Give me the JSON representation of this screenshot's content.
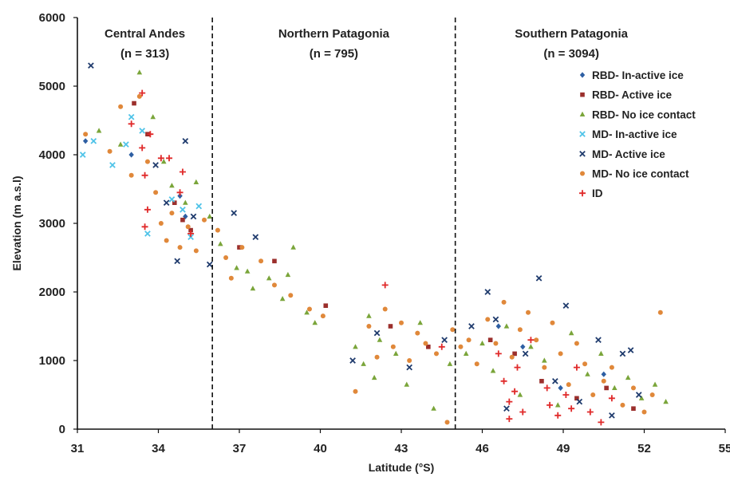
{
  "chart_data": {
    "type": "scatter",
    "xlabel": "Latitude (°S)",
    "ylabel": "Elevation (m a.s.l)",
    "xlim": [
      31,
      55
    ],
    "ylim": [
      0,
      6000
    ],
    "x_ticks": [
      "31",
      "34",
      "37",
      "40",
      "43",
      "46",
      "49",
      "52",
      "55"
    ],
    "y_ticks": [
      "0",
      "1000",
      "2000",
      "3000",
      "4000",
      "5000",
      "6000"
    ],
    "grid": false,
    "legend_position": "top-right",
    "dividers_x": [
      36,
      45
    ],
    "regions": [
      {
        "name": "Central Andes",
        "count": "(n = 313)",
        "x_center": 33.5
      },
      {
        "name": "Northern Patagonia",
        "count": "(n = 795)",
        "x_center": 40.5
      },
      {
        "name": "Southern Patagonia",
        "count": "(n = 3094)",
        "x_center": 49.3
      }
    ],
    "series": [
      {
        "name": "RBD- In-active ice",
        "color": "#2e5fa3",
        "marker": "diamond",
        "points": [
          [
            31.3,
            4200
          ],
          [
            33.0,
            4000
          ],
          [
            34.8,
            3400
          ],
          [
            35.0,
            3100
          ],
          [
            46.6,
            1500
          ],
          [
            47.5,
            1200
          ],
          [
            48.9,
            600
          ],
          [
            50.5,
            800
          ]
        ]
      },
      {
        "name": "RBD- Active ice",
        "color": "#9b2f2c",
        "marker": "square",
        "points": [
          [
            33.1,
            4750
          ],
          [
            33.6,
            4300
          ],
          [
            34.6,
            3300
          ],
          [
            34.9,
            3050
          ],
          [
            35.2,
            2900
          ],
          [
            37.0,
            2650
          ],
          [
            38.3,
            2450
          ],
          [
            40.2,
            1800
          ],
          [
            42.6,
            1500
          ],
          [
            44.0,
            1200
          ],
          [
            46.3,
            1300
          ],
          [
            47.2,
            1100
          ],
          [
            48.2,
            700
          ],
          [
            49.5,
            450
          ],
          [
            50.6,
            600
          ],
          [
            51.6,
            300
          ]
        ]
      },
      {
        "name": "RBD- No ice contact",
        "color": "#7aa53a",
        "marker": "triangle",
        "points": [
          [
            31.8,
            4350
          ],
          [
            32.6,
            4150
          ],
          [
            33.3,
            5200
          ],
          [
            33.8,
            4550
          ],
          [
            34.2,
            3900
          ],
          [
            34.5,
            3550
          ],
          [
            35.0,
            3300
          ],
          [
            35.4,
            3600
          ],
          [
            35.9,
            3100
          ],
          [
            36.3,
            2700
          ],
          [
            36.9,
            2350
          ],
          [
            37.3,
            2300
          ],
          [
            37.5,
            2050
          ],
          [
            38.1,
            2200
          ],
          [
            38.6,
            1900
          ],
          [
            38.8,
            2250
          ],
          [
            39.0,
            2650
          ],
          [
            39.5,
            1700
          ],
          [
            39.8,
            1550
          ],
          [
            41.3,
            1200
          ],
          [
            41.6,
            950
          ],
          [
            41.8,
            1650
          ],
          [
            42.0,
            750
          ],
          [
            42.2,
            1300
          ],
          [
            42.8,
            1100
          ],
          [
            43.2,
            650
          ],
          [
            43.7,
            1550
          ],
          [
            44.2,
            300
          ],
          [
            44.8,
            950
          ],
          [
            45.4,
            1100
          ],
          [
            46.0,
            1250
          ],
          [
            46.4,
            850
          ],
          [
            46.9,
            1500
          ],
          [
            47.4,
            500
          ],
          [
            47.8,
            1200
          ],
          [
            48.3,
            1000
          ],
          [
            48.8,
            350
          ],
          [
            49.3,
            1400
          ],
          [
            49.9,
            800
          ],
          [
            50.4,
            1100
          ],
          [
            50.9,
            600
          ],
          [
            51.4,
            750
          ],
          [
            51.9,
            450
          ],
          [
            52.4,
            650
          ],
          [
            52.8,
            400
          ]
        ]
      },
      {
        "name": "MD- In-active ice",
        "color": "#4fc3e8",
        "marker": "x",
        "points": [
          [
            31.2,
            4000
          ],
          [
            31.6,
            4200
          ],
          [
            32.3,
            3850
          ],
          [
            32.8,
            4150
          ],
          [
            33.0,
            4550
          ],
          [
            33.4,
            4350
          ],
          [
            33.6,
            2850
          ],
          [
            34.5,
            3350
          ],
          [
            34.9,
            3200
          ],
          [
            35.2,
            2800
          ],
          [
            35.5,
            3250
          ]
        ]
      },
      {
        "name": "MD- Active ice",
        "color": "#1f3b6d",
        "marker": "x",
        "points": [
          [
            31.5,
            5300
          ],
          [
            33.9,
            3850
          ],
          [
            34.3,
            3300
          ],
          [
            34.7,
            2450
          ],
          [
            35.0,
            4200
          ],
          [
            35.3,
            3100
          ],
          [
            35.9,
            2400
          ],
          [
            36.8,
            3150
          ],
          [
            37.6,
            2800
          ],
          [
            41.2,
            1000
          ],
          [
            42.1,
            1400
          ],
          [
            43.3,
            900
          ],
          [
            44.6,
            1300
          ],
          [
            45.6,
            1500
          ],
          [
            46.2,
            2000
          ],
          [
            46.5,
            1600
          ],
          [
            46.9,
            300
          ],
          [
            47.6,
            1100
          ],
          [
            48.1,
            2200
          ],
          [
            48.7,
            700
          ],
          [
            49.1,
            1800
          ],
          [
            49.6,
            400
          ],
          [
            50.3,
            1300
          ],
          [
            50.8,
            200
          ],
          [
            51.2,
            1100
          ],
          [
            51.5,
            1150
          ],
          [
            51.8,
            500
          ]
        ]
      },
      {
        "name": "MD- No ice contact",
        "color": "#e0883a",
        "marker": "circle",
        "points": [
          [
            31.3,
            4300
          ],
          [
            32.2,
            4050
          ],
          [
            32.6,
            4700
          ],
          [
            33.0,
            3700
          ],
          [
            33.3,
            4850
          ],
          [
            33.6,
            3900
          ],
          [
            33.9,
            3450
          ],
          [
            34.1,
            3000
          ],
          [
            34.3,
            2750
          ],
          [
            34.5,
            3150
          ],
          [
            34.8,
            2650
          ],
          [
            35.1,
            2950
          ],
          [
            35.4,
            2600
          ],
          [
            35.7,
            3050
          ],
          [
            36.2,
            2900
          ],
          [
            36.5,
            2500
          ],
          [
            36.7,
            2200
          ],
          [
            37.1,
            2650
          ],
          [
            37.8,
            2450
          ],
          [
            38.3,
            2100
          ],
          [
            38.9,
            1950
          ],
          [
            39.6,
            1750
          ],
          [
            40.1,
            1650
          ],
          [
            41.3,
            550
          ],
          [
            41.8,
            1500
          ],
          [
            42.1,
            1050
          ],
          [
            42.4,
            1750
          ],
          [
            42.7,
            1200
          ],
          [
            43.0,
            1550
          ],
          [
            43.3,
            1000
          ],
          [
            43.6,
            1400
          ],
          [
            43.9,
            1250
          ],
          [
            44.3,
            1100
          ],
          [
            44.7,
            100
          ],
          [
            44.9,
            1450
          ],
          [
            45.2,
            1200
          ],
          [
            45.5,
            1300
          ],
          [
            45.8,
            950
          ],
          [
            46.2,
            1600
          ],
          [
            46.5,
            1250
          ],
          [
            46.8,
            1850
          ],
          [
            47.1,
            1050
          ],
          [
            47.4,
            1450
          ],
          [
            47.7,
            1700
          ],
          [
            48.0,
            1300
          ],
          [
            48.3,
            900
          ],
          [
            48.6,
            1550
          ],
          [
            48.9,
            1100
          ],
          [
            49.2,
            650
          ],
          [
            49.5,
            1250
          ],
          [
            49.8,
            950
          ],
          [
            50.1,
            500
          ],
          [
            50.5,
            700
          ],
          [
            50.8,
            900
          ],
          [
            51.2,
            350
          ],
          [
            51.6,
            600
          ],
          [
            52.0,
            250
          ],
          [
            52.3,
            500
          ],
          [
            52.6,
            1700
          ]
        ]
      },
      {
        "name": "ID",
        "color": "#e02a2a",
        "marker": "plus",
        "points": [
          [
            33.4,
            4900
          ],
          [
            33.0,
            4450
          ],
          [
            33.7,
            4300
          ],
          [
            33.4,
            4100
          ],
          [
            34.1,
            3950
          ],
          [
            34.4,
            3950
          ],
          [
            34.9,
            3750
          ],
          [
            33.5,
            3700
          ],
          [
            33.6,
            3200
          ],
          [
            33.5,
            2950
          ],
          [
            34.8,
            3450
          ],
          [
            35.2,
            2850
          ],
          [
            42.4,
            2100
          ],
          [
            44.5,
            1200
          ],
          [
            46.6,
            1100
          ],
          [
            46.8,
            700
          ],
          [
            47.0,
            400
          ],
          [
            47.0,
            150
          ],
          [
            47.2,
            550
          ],
          [
            47.3,
            900
          ],
          [
            47.5,
            250
          ],
          [
            47.8,
            1300
          ],
          [
            48.4,
            600
          ],
          [
            48.5,
            350
          ],
          [
            48.8,
            200
          ],
          [
            49.1,
            500
          ],
          [
            49.3,
            300
          ],
          [
            49.5,
            900
          ],
          [
            50.0,
            250
          ],
          [
            50.4,
            100
          ],
          [
            50.8,
            450
          ]
        ]
      }
    ]
  }
}
